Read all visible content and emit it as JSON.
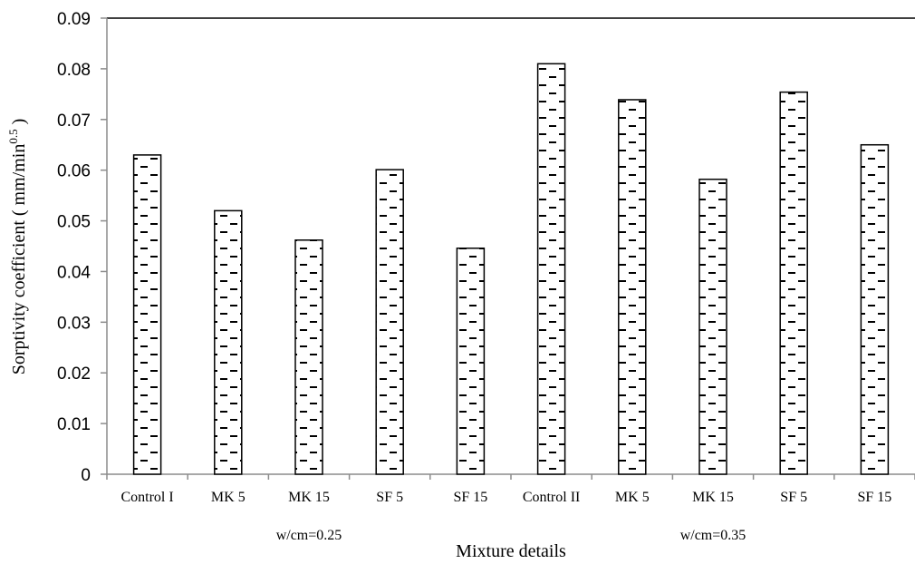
{
  "chart_data": {
    "type": "bar",
    "categories": [
      "Control I",
      "MK 5",
      "MK 15",
      "SF 5",
      "SF 15",
      "Control II",
      "MK 5",
      "MK 15",
      "SF 5",
      "SF 15"
    ],
    "groups": [
      {
        "label": "w/cm=0.25",
        "categories": [
          "Control I",
          "MK 5",
          "MK 15",
          "SF 5",
          "SF 15"
        ]
      },
      {
        "label": "w/cm=0.35",
        "categories": [
          "Control II",
          "MK 5",
          "MK 15",
          "SF 5",
          "SF 15"
        ]
      }
    ],
    "values": [
      0.063,
      0.052,
      0.0462,
      0.0601,
      0.0446,
      0.081,
      0.0739,
      0.0582,
      0.0754,
      0.065
    ],
    "xlabel": "Mixture details",
    "ylabel_main": "Sorptivity coefficient ( mm/min",
    "ylabel_sup": "0.5",
    "ylabel_close": " )",
    "ylim": [
      0,
      0.09
    ],
    "yticks": [
      "0",
      "0.01",
      "0.02",
      "0.03",
      "0.04",
      "0.05",
      "0.06",
      "0.07",
      "0.08",
      "0.09"
    ],
    "grid": false,
    "bar_fill_pattern": "dashed-horizontal",
    "colors": {
      "bar_stroke": "#000000",
      "axis": "#8c8c8c",
      "frame_top": "#000000"
    }
  }
}
